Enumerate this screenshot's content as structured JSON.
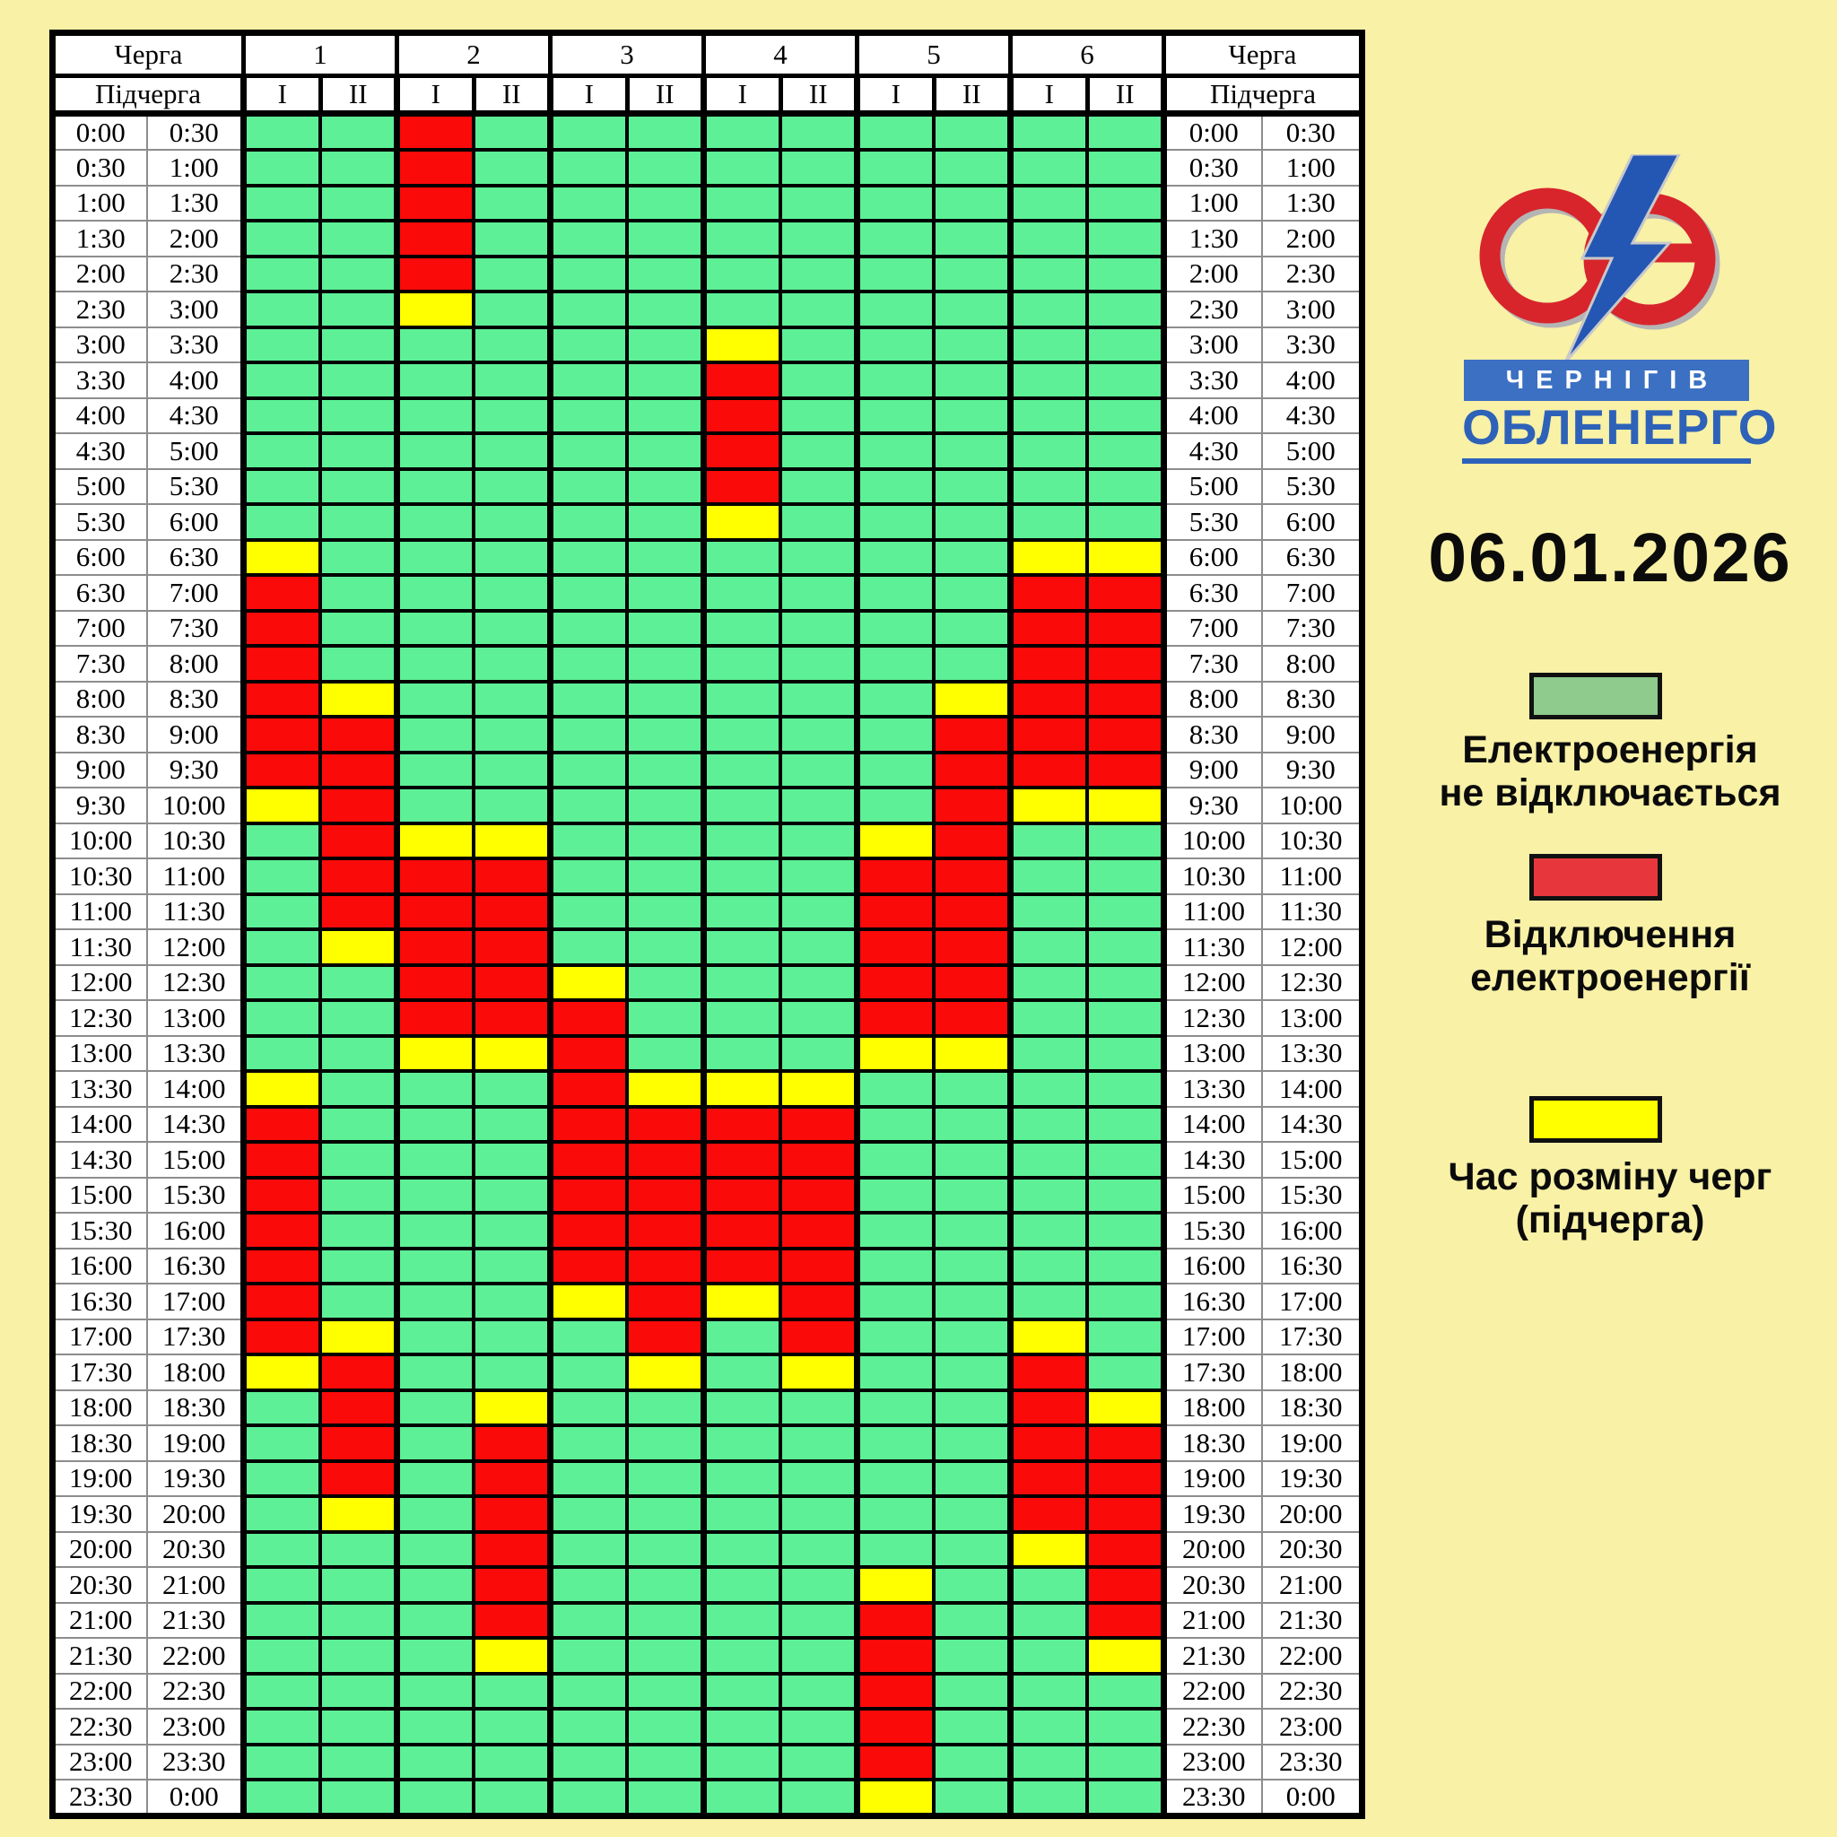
{
  "page": {
    "background": "#F8F1A6"
  },
  "date": "06.01.2026",
  "logo": {
    "city": "ЧЕРНІГІВ",
    "company": "ОБЛЕНЕРГО",
    "ring_color": "#D8252C",
    "bolt_color": "#2456B4",
    "bar_color": "#3C70C2"
  },
  "table": {
    "queue_label": "Черга",
    "subqueue_label": "Підчерга"
  },
  "legend": [
    {
      "key": "G",
      "color": "#8FCB8C",
      "lines": [
        "Електроенергія",
        "не відключається"
      ]
    },
    {
      "key": "R",
      "color": "#E8373C",
      "lines": [
        "Відключення",
        "електроенергії"
      ]
    },
    {
      "key": "Y",
      "color": "#FFFF00",
      "lines": [
        "Час розміну черг",
        "(підчерга)"
      ]
    }
  ],
  "chart_data": {
    "type": "heatmap",
    "title": "06.01.2026",
    "queues": [
      "1",
      "2",
      "3",
      "4",
      "5",
      "6"
    ],
    "subqueues": [
      "I",
      "II"
    ],
    "columns": [
      "1-I",
      "1-II",
      "2-I",
      "2-II",
      "3-I",
      "3-II",
      "4-I",
      "4-II",
      "5-I",
      "5-II",
      "6-I",
      "6-II"
    ],
    "cell_colors": {
      "G": "#5DF097",
      "R": "#FB0A0A",
      "Y": "#FFFF00"
    },
    "value_legend": {
      "G": "Електроенергія не відключається",
      "R": "Відключення електроенергії",
      "Y": "Час розміну черг (підчерга)"
    },
    "time_rows": [
      {
        "start": "0:00",
        "end": "0:30",
        "cells": "GGRGGGGGGGGG"
      },
      {
        "start": "0:30",
        "end": "1:00",
        "cells": "GGRGGGGGGGGG"
      },
      {
        "start": "1:00",
        "end": "1:30",
        "cells": "GGRGGGGGGGGG"
      },
      {
        "start": "1:30",
        "end": "2:00",
        "cells": "GGRGGGGGGGGG"
      },
      {
        "start": "2:00",
        "end": "2:30",
        "cells": "GGRGGGGGGGGG"
      },
      {
        "start": "2:30",
        "end": "3:00",
        "cells": "GGYGGGGGGGGG"
      },
      {
        "start": "3:00",
        "end": "3:30",
        "cells": "GGGGGGYGGGGG"
      },
      {
        "start": "3:30",
        "end": "4:00",
        "cells": "GGGGGGRGGGGG"
      },
      {
        "start": "4:00",
        "end": "4:30",
        "cells": "GGGGGGRGGGGG"
      },
      {
        "start": "4:30",
        "end": "5:00",
        "cells": "GGGGGGRGGGGG"
      },
      {
        "start": "5:00",
        "end": "5:30",
        "cells": "GGGGGGRGGGGG"
      },
      {
        "start": "5:30",
        "end": "6:00",
        "cells": "GGGGGGYGGGGG"
      },
      {
        "start": "6:00",
        "end": "6:30",
        "cells": "YGGGGGGGGGYY"
      },
      {
        "start": "6:30",
        "end": "7:00",
        "cells": "RGGGGGGGGGRR"
      },
      {
        "start": "7:00",
        "end": "7:30",
        "cells": "RGGGGGGGGGRR"
      },
      {
        "start": "7:30",
        "end": "8:00",
        "cells": "RGGGGGGGGGRR"
      },
      {
        "start": "8:00",
        "end": "8:30",
        "cells": "RYGGGGGGGYRR"
      },
      {
        "start": "8:30",
        "end": "9:00",
        "cells": "RRGGGGGGGRRR"
      },
      {
        "start": "9:00",
        "end": "9:30",
        "cells": "RRGGGGGGGRRR"
      },
      {
        "start": "9:30",
        "end": "10:00",
        "cells": "YRGGGGGGGRYY"
      },
      {
        "start": "10:00",
        "end": "10:30",
        "cells": "GRYYGGGGYRGG"
      },
      {
        "start": "10:30",
        "end": "11:00",
        "cells": "GRRRGGGGRRGG"
      },
      {
        "start": "11:00",
        "end": "11:30",
        "cells": "GRRRGGGGRRGG"
      },
      {
        "start": "11:30",
        "end": "12:00",
        "cells": "GYRRGGGGRRGG"
      },
      {
        "start": "12:00",
        "end": "12:30",
        "cells": "GGRRYGGGRRGG"
      },
      {
        "start": "12:30",
        "end": "13:00",
        "cells": "GGRRRGGGRRGG"
      },
      {
        "start": "13:00",
        "end": "13:30",
        "cells": "GGYYRGGGYYGG"
      },
      {
        "start": "13:30",
        "end": "14:00",
        "cells": "YGGGRYYYGGGG"
      },
      {
        "start": "14:00",
        "end": "14:30",
        "cells": "RGGGRRRRGGGG"
      },
      {
        "start": "14:30",
        "end": "15:00",
        "cells": "RGGGRRRRGGGG"
      },
      {
        "start": "15:00",
        "end": "15:30",
        "cells": "RGGGRRRRGGGG"
      },
      {
        "start": "15:30",
        "end": "16:00",
        "cells": "RGGGRRRRGGGG"
      },
      {
        "start": "16:00",
        "end": "16:30",
        "cells": "RGGGRRRRGGGG"
      },
      {
        "start": "16:30",
        "end": "17:00",
        "cells": "RGGGYRYRGGGG"
      },
      {
        "start": "17:00",
        "end": "17:30",
        "cells": "RYGGGRGRGGYG"
      },
      {
        "start": "17:30",
        "end": "18:00",
        "cells": "YRGGGYGYGGRG"
      },
      {
        "start": "18:00",
        "end": "18:30",
        "cells": "GRGYGGGGGGRY"
      },
      {
        "start": "18:30",
        "end": "19:00",
        "cells": "GRGRGGGGGGRR"
      },
      {
        "start": "19:00",
        "end": "19:30",
        "cells": "GRGRGGGGGGRR"
      },
      {
        "start": "19:30",
        "end": "20:00",
        "cells": "GYGRGGGGGGRR"
      },
      {
        "start": "20:00",
        "end": "20:30",
        "cells": "GGGRGGGGGGYR"
      },
      {
        "start": "20:30",
        "end": "21:00",
        "cells": "GGGRGGGGYGGR"
      },
      {
        "start": "21:00",
        "end": "21:30",
        "cells": "GGGRGGGGRGGR"
      },
      {
        "start": "21:30",
        "end": "22:00",
        "cells": "GGGYGGGGRGGY"
      },
      {
        "start": "22:00",
        "end": "22:30",
        "cells": "GGGGGGGGRGGG"
      },
      {
        "start": "22:30",
        "end": "23:00",
        "cells": "GGGGGGGGRGGG"
      },
      {
        "start": "23:00",
        "end": "23:30",
        "cells": "GGGGGGGGRGGG"
      },
      {
        "start": "23:30",
        "end": "0:00",
        "cells": "GGGGGGGGYGGG"
      }
    ]
  }
}
